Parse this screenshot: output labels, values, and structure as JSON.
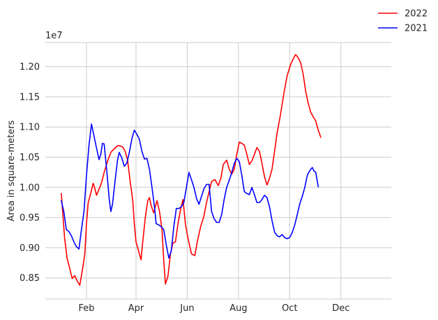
{
  "chart_data": {
    "type": "line",
    "title": "",
    "xlabel": "",
    "ylabel": "Area in square-meters",
    "y_offset_label": "1e7",
    "ylim": [
      0.815,
      1.24
    ],
    "xlim": [
      -18,
      394
    ],
    "grid": true,
    "legend_position": "top-right (outside plot)",
    "x_ticks": [
      {
        "label": "Feb",
        "x": 31
      },
      {
        "label": "Apr",
        "x": 90
      },
      {
        "label": "Jun",
        "x": 151
      },
      {
        "label": "Aug",
        "x": 212
      },
      {
        "label": "Oct",
        "x": 273
      },
      {
        "label": "Dec",
        "x": 334
      }
    ],
    "y_ticks": [
      {
        "label": "0.85",
        "value": 0.85
      },
      {
        "label": "0.90",
        "value": 0.9
      },
      {
        "label": "0.95",
        "value": 0.95
      },
      {
        "label": "1.00",
        "value": 1.0
      },
      {
        "label": "1.05",
        "value": 1.05
      },
      {
        "label": "1.10",
        "value": 1.1
      },
      {
        "label": "1.15",
        "value": 1.15
      },
      {
        "label": "1.20",
        "value": 1.2
      }
    ],
    "series": [
      {
        "name": "2022",
        "color": "#ff0000",
        "points": [
          [
            1,
            0.99
          ],
          [
            5,
            0.915
          ],
          [
            8,
            0.882
          ],
          [
            11,
            0.866
          ],
          [
            14,
            0.849
          ],
          [
            17,
            0.854
          ],
          [
            20,
            0.845
          ],
          [
            23,
            0.838
          ],
          [
            26,
            0.862
          ],
          [
            29,
            0.89
          ],
          [
            31,
            0.94
          ],
          [
            33,
            0.974
          ],
          [
            36,
            0.99
          ],
          [
            39,
            1.007
          ],
          [
            41,
            0.998
          ],
          [
            43,
            0.987
          ],
          [
            46,
            0.997
          ],
          [
            49,
            1.008
          ],
          [
            52,
            1.025
          ],
          [
            56,
            1.043
          ],
          [
            60,
            1.058
          ],
          [
            64,
            1.064
          ],
          [
            68,
            1.069
          ],
          [
            71,
            1.069
          ],
          [
            74,
            1.067
          ],
          [
            77,
            1.06
          ],
          [
            80,
            1.045
          ],
          [
            83,
            1.01
          ],
          [
            86,
            0.98
          ],
          [
            88,
            0.94
          ],
          [
            90,
            0.91
          ],
          [
            93,
            0.895
          ],
          [
            96,
            0.88
          ],
          [
            98,
            0.91
          ],
          [
            101,
            0.95
          ],
          [
            104,
            0.978
          ],
          [
            106,
            0.983
          ],
          [
            108,
            0.97
          ],
          [
            111,
            0.958
          ],
          [
            113,
            0.968
          ],
          [
            115,
            0.978
          ],
          [
            118,
            0.96
          ],
          [
            121,
            0.93
          ],
          [
            123,
            0.88
          ],
          [
            125,
            0.84
          ],
          [
            128,
            0.853
          ],
          [
            131,
            0.89
          ],
          [
            134,
            0.908
          ],
          [
            137,
            0.91
          ],
          [
            140,
            0.94
          ],
          [
            143,
            0.963
          ],
          [
            146,
            0.98
          ],
          [
            149,
            0.938
          ],
          [
            152,
            0.915
          ],
          [
            156,
            0.89
          ],
          [
            160,
            0.887
          ],
          [
            163,
            0.91
          ],
          [
            167,
            0.935
          ],
          [
            171,
            0.953
          ],
          [
            174,
            0.975
          ],
          [
            177,
            0.993
          ],
          [
            180,
            1.01
          ],
          [
            184,
            1.013
          ],
          [
            188,
            1.003
          ],
          [
            191,
            1.015
          ],
          [
            194,
            1.038
          ],
          [
            198,
            1.045
          ],
          [
            201,
            1.03
          ],
          [
            204,
            1.022
          ],
          [
            207,
            1.03
          ],
          [
            210,
            1.055
          ],
          [
            213,
            1.075
          ],
          [
            216,
            1.073
          ],
          [
            219,
            1.07
          ],
          [
            222,
            1.055
          ],
          [
            225,
            1.038
          ],
          [
            228,
            1.044
          ],
          [
            231,
            1.055
          ],
          [
            234,
            1.066
          ],
          [
            237,
            1.06
          ],
          [
            240,
            1.04
          ],
          [
            243,
            1.018
          ],
          [
            246,
            1.004
          ],
          [
            249,
            1.015
          ],
          [
            252,
            1.03
          ],
          [
            255,
            1.06
          ],
          [
            258,
            1.09
          ],
          [
            262,
            1.12
          ],
          [
            266,
            1.155
          ],
          [
            270,
            1.185
          ],
          [
            274,
            1.203
          ],
          [
            277,
            1.212
          ],
          [
            280,
            1.22
          ],
          [
            283,
            1.215
          ],
          [
            286,
            1.207
          ],
          [
            289,
            1.188
          ],
          [
            292,
            1.16
          ],
          [
            295,
            1.14
          ],
          [
            298,
            1.125
          ],
          [
            301,
            1.117
          ],
          [
            304,
            1.11
          ],
          [
            307,
            1.095
          ],
          [
            310,
            1.083
          ]
        ]
      },
      {
        "name": "2021",
        "color": "#0000ff",
        "points": [
          [
            1,
            0.978
          ],
          [
            4,
            0.96
          ],
          [
            7,
            0.93
          ],
          [
            10,
            0.927
          ],
          [
            13,
            0.92
          ],
          [
            16,
            0.91
          ],
          [
            19,
            0.902
          ],
          [
            22,
            0.898
          ],
          [
            25,
            0.93
          ],
          [
            28,
            0.96
          ],
          [
            31,
            1.02
          ],
          [
            34,
            1.07
          ],
          [
            37,
            1.105
          ],
          [
            40,
            1.085
          ],
          [
            43,
            1.065
          ],
          [
            46,
            1.046
          ],
          [
            48,
            1.055
          ],
          [
            50,
            1.073
          ],
          [
            52,
            1.072
          ],
          [
            55,
            1.03
          ],
          [
            58,
            0.982
          ],
          [
            60,
            0.96
          ],
          [
            62,
            0.972
          ],
          [
            65,
            1.01
          ],
          [
            68,
            1.045
          ],
          [
            70,
            1.058
          ],
          [
            73,
            1.049
          ],
          [
            76,
            1.035
          ],
          [
            79,
            1.04
          ],
          [
            82,
            1.058
          ],
          [
            85,
            1.08
          ],
          [
            88,
            1.095
          ],
          [
            91,
            1.088
          ],
          [
            94,
            1.08
          ],
          [
            97,
            1.06
          ],
          [
            100,
            1.047
          ],
          [
            103,
            1.048
          ],
          [
            106,
            1.03
          ],
          [
            109,
            1.0
          ],
          [
            112,
            0.968
          ],
          [
            114,
            0.94
          ],
          [
            117,
            0.938
          ],
          [
            120,
            0.935
          ],
          [
            123,
            0.93
          ],
          [
            126,
            0.905
          ],
          [
            129,
            0.883
          ],
          [
            132,
            0.895
          ],
          [
            135,
            0.935
          ],
          [
            138,
            0.965
          ],
          [
            141,
            0.965
          ],
          [
            144,
            0.968
          ],
          [
            147,
            0.975
          ],
          [
            150,
            1.0
          ],
          [
            153,
            1.025
          ],
          [
            156,
            1.013
          ],
          [
            159,
            1.0
          ],
          [
            162,
            0.982
          ],
          [
            165,
            0.972
          ],
          [
            168,
            0.985
          ],
          [
            171,
            0.998
          ],
          [
            174,
            1.005
          ],
          [
            177,
            1.005
          ],
          [
            180,
            0.96
          ],
          [
            183,
            0.948
          ],
          [
            186,
            0.942
          ],
          [
            189,
            0.942
          ],
          [
            192,
            0.955
          ],
          [
            195,
            0.98
          ],
          [
            198,
            1.0
          ],
          [
            201,
            1.012
          ],
          [
            204,
            1.025
          ],
          [
            207,
            1.04
          ],
          [
            210,
            1.048
          ],
          [
            213,
            1.043
          ],
          [
            216,
            1.02
          ],
          [
            219,
            0.993
          ],
          [
            222,
            0.99
          ],
          [
            225,
            0.988
          ],
          [
            228,
            1.0
          ],
          [
            231,
            0.988
          ],
          [
            234,
            0.975
          ],
          [
            237,
            0.975
          ],
          [
            240,
            0.98
          ],
          [
            243,
            0.987
          ],
          [
            246,
            0.983
          ],
          [
            249,
            0.968
          ],
          [
            252,
            0.945
          ],
          [
            255,
            0.926
          ],
          [
            258,
            0.92
          ],
          [
            261,
            0.918
          ],
          [
            264,
            0.922
          ],
          [
            267,
            0.917
          ],
          [
            270,
            0.915
          ],
          [
            273,
            0.917
          ],
          [
            276,
            0.925
          ],
          [
            279,
            0.938
          ],
          [
            282,
            0.955
          ],
          [
            285,
            0.973
          ],
          [
            288,
            0.985
          ],
          [
            291,
            1.0
          ],
          [
            294,
            1.02
          ],
          [
            297,
            1.028
          ],
          [
            300,
            1.033
          ],
          [
            302,
            1.027
          ],
          [
            304,
            1.025
          ],
          [
            307,
            1.001
          ]
        ]
      }
    ]
  }
}
